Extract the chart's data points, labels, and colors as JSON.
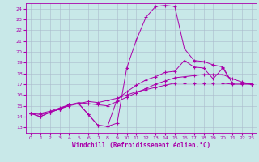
{
  "xlabel": "Windchill (Refroidissement éolien,°C)",
  "xlim": [
    -0.5,
    23.5
  ],
  "ylim": [
    12.5,
    24.5
  ],
  "yticks": [
    13,
    14,
    15,
    16,
    17,
    18,
    19,
    20,
    21,
    22,
    23,
    24
  ],
  "xticks": [
    0,
    1,
    2,
    3,
    4,
    5,
    6,
    7,
    8,
    9,
    10,
    11,
    12,
    13,
    14,
    15,
    16,
    17,
    18,
    19,
    20,
    21,
    22,
    23
  ],
  "background_color": "#c8e8e8",
  "line_color": "#aa00aa",
  "grid_color": "#aabbcc",
  "line1_x": [
    0,
    1,
    2,
    3,
    4,
    5,
    6,
    7,
    8,
    9,
    10,
    11,
    12,
    13,
    14,
    15,
    16,
    17,
    18,
    19,
    20,
    21,
    22,
    23
  ],
  "line1_y": [
    14.3,
    14.0,
    14.4,
    14.7,
    15.1,
    15.2,
    14.2,
    13.2,
    13.1,
    13.4,
    18.5,
    21.1,
    23.2,
    24.2,
    24.3,
    24.2,
    20.3,
    19.2,
    19.1,
    18.8,
    18.6,
    17.1,
    17.1,
    17.0
  ],
  "line2_x": [
    0,
    1,
    2,
    3,
    4,
    5,
    6,
    7,
    8,
    9,
    10,
    11,
    12,
    13,
    14,
    15,
    16,
    17,
    18,
    19,
    20,
    21,
    22,
    23
  ],
  "line2_y": [
    14.3,
    14.0,
    14.4,
    14.7,
    15.1,
    15.2,
    14.2,
    13.2,
    13.1,
    15.6,
    16.3,
    16.9,
    17.4,
    17.7,
    18.1,
    18.2,
    19.2,
    18.6,
    18.5,
    17.5,
    18.5,
    17.1,
    17.1,
    17.0
  ],
  "line3_x": [
    0,
    1,
    2,
    3,
    4,
    5,
    6,
    7,
    8,
    9,
    10,
    11,
    12,
    13,
    14,
    15,
    16,
    17,
    18,
    19,
    20,
    21,
    22,
    23
  ],
  "line3_y": [
    14.3,
    14.3,
    14.5,
    14.8,
    15.1,
    15.3,
    15.2,
    15.1,
    15.0,
    15.4,
    15.8,
    16.2,
    16.6,
    17.0,
    17.3,
    17.6,
    17.7,
    17.8,
    17.9,
    17.9,
    17.9,
    17.5,
    17.2,
    17.0
  ],
  "line4_x": [
    0,
    1,
    2,
    3,
    4,
    5,
    6,
    7,
    8,
    9,
    10,
    11,
    12,
    13,
    14,
    15,
    16,
    17,
    18,
    19,
    20,
    21,
    22,
    23
  ],
  "line4_y": [
    14.3,
    14.2,
    14.4,
    14.7,
    15.0,
    15.2,
    15.4,
    15.3,
    15.5,
    15.7,
    16.0,
    16.3,
    16.5,
    16.7,
    16.9,
    17.1,
    17.1,
    17.1,
    17.1,
    17.1,
    17.1,
    17.0,
    17.0,
    17.0
  ]
}
